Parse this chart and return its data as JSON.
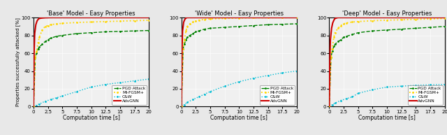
{
  "titles": [
    "'Base' Model - Easy Properties",
    "'Wide' Model - Easy Properties",
    "'Deep' Model - Easy Properties"
  ],
  "xlabel": "Computation time [s]",
  "ylabel": "Properties successfully attacked [%]",
  "xlim": [
    0,
    20
  ],
  "ylim": [
    0,
    100
  ],
  "xticks": [
    0,
    2.5,
    5.0,
    7.5,
    10.0,
    12.5,
    15.0,
    17.5,
    20.0
  ],
  "yticks": [
    0,
    20,
    40,
    60,
    80,
    100
  ],
  "hline_y": 100,
  "legend_labels": [
    "PGD Attack",
    "MI-FGSM+",
    "C&W",
    "AdvGNN"
  ],
  "base_pgd_x": [
    0,
    0.3,
    0.5,
    0.8,
    1.0,
    1.5,
    2.0,
    2.5,
    3.0,
    4.0,
    5.0,
    7.5,
    10.0,
    12.5,
    15.0,
    17.5,
    20.0
  ],
  "base_pgd_y": [
    0,
    55,
    60,
    65,
    67,
    70,
    73,
    75,
    77,
    79,
    80,
    82,
    83,
    84,
    84.5,
    85,
    85.5
  ],
  "base_mifgsm_x": [
    0,
    0.3,
    0.5,
    0.8,
    1.0,
    1.5,
    2.0,
    2.5,
    3.0,
    4.0,
    5.0,
    7.5,
    10.0,
    12.5,
    15.0,
    17.5,
    20.0
  ],
  "base_mifgsm_y": [
    0,
    55,
    62,
    72,
    78,
    86,
    90,
    91,
    92,
    93,
    93.5,
    94.5,
    95,
    95.5,
    96,
    96.5,
    97
  ],
  "base_cw_x": [
    0,
    0.5,
    1.0,
    2.0,
    3.0,
    4.0,
    5.0,
    7.5,
    10.0,
    12.5,
    15.0,
    17.5,
    20.0
  ],
  "base_cw_y": [
    0,
    1.5,
    3,
    6,
    8,
    10,
    12,
    17,
    22,
    25,
    27,
    29,
    31
  ],
  "base_adv_x": [
    0,
    0.1,
    0.2,
    0.4,
    0.6,
    0.8,
    1.0,
    1.5,
    2.0,
    3.0,
    5.0,
    10.0,
    20.0
  ],
  "base_adv_y": [
    0,
    60,
    82,
    92,
    96,
    98,
    99,
    99.5,
    99.8,
    100,
    100,
    100,
    100
  ],
  "wide_pgd_x": [
    0,
    0.3,
    0.5,
    0.8,
    1.0,
    1.5,
    2.0,
    2.5,
    3.0,
    4.0,
    5.0,
    7.5,
    10.0,
    12.5,
    15.0,
    17.5,
    20.0
  ],
  "wide_pgd_y": [
    0,
    65,
    70,
    75,
    78,
    80,
    82,
    84,
    85,
    87,
    88,
    89,
    90,
    91,
    92,
    92.5,
    93
  ],
  "wide_mifgsm_x": [
    0,
    0.3,
    0.5,
    0.8,
    1.0,
    1.5,
    2.0,
    2.5,
    3.0,
    4.0,
    5.0,
    7.5,
    10.0,
    12.5,
    15.0,
    17.5,
    20.0
  ],
  "wide_mifgsm_y": [
    0,
    65,
    75,
    85,
    90,
    93,
    95,
    96,
    97,
    98,
    98.5,
    99,
    99.5,
    99.7,
    99.8,
    99.9,
    100
  ],
  "wide_cw_x": [
    0,
    0.5,
    1.0,
    2.0,
    3.0,
    4.0,
    5.0,
    7.5,
    10.0,
    12.5,
    15.0,
    17.5,
    20.0
  ],
  "wide_cw_y": [
    0,
    2,
    5,
    8,
    11,
    14,
    17,
    23,
    28,
    32,
    35,
    38,
    40
  ],
  "wide_adv_x": [
    0,
    0.1,
    0.2,
    0.4,
    0.6,
    0.8,
    1.0,
    1.5,
    2.0,
    3.0,
    5.0,
    10.0,
    20.0
  ],
  "wide_adv_y": [
    0,
    62,
    85,
    95,
    98,
    99.5,
    100,
    100,
    100,
    100,
    100,
    100,
    100
  ],
  "deep_pgd_x": [
    0,
    0.3,
    0.5,
    0.8,
    1.0,
    1.5,
    2.0,
    2.5,
    3.0,
    4.0,
    5.0,
    7.5,
    10.0,
    12.5,
    15.0,
    17.5,
    20.0
  ],
  "deep_pgd_y": [
    0,
    55,
    62,
    68,
    70,
    73,
    75,
    78,
    79,
    81,
    83,
    85,
    86,
    87,
    88,
    89,
    90
  ],
  "deep_mifgsm_x": [
    0,
    0.3,
    0.5,
    0.8,
    1.0,
    1.5,
    2.0,
    2.5,
    3.0,
    4.0,
    5.0,
    7.5,
    10.0,
    12.5,
    15.0,
    17.5,
    20.0
  ],
  "deep_mifgsm_y": [
    0,
    55,
    65,
    78,
    83,
    88,
    91,
    93,
    94,
    95,
    95.5,
    96.5,
    97,
    97.5,
    98,
    98.5,
    99
  ],
  "deep_cw_x": [
    0,
    0.5,
    1.0,
    2.0,
    3.0,
    4.0,
    5.0,
    7.5,
    10.0,
    12.5,
    15.0,
    17.5,
    20.0
  ],
  "deep_cw_y": [
    0,
    2,
    4,
    7,
    9,
    11,
    15,
    19,
    22,
    23,
    24,
    24.5,
    25
  ],
  "deep_adv_x": [
    0,
    0.1,
    0.2,
    0.4,
    0.6,
    0.8,
    1.0,
    1.5,
    2.0,
    2.5,
    3.0,
    5.0,
    10.0,
    20.0
  ],
  "deep_adv_y": [
    0,
    52,
    75,
    88,
    94,
    97,
    99,
    100,
    100,
    100,
    100,
    100,
    100,
    100
  ],
  "fig_facecolor": "#e8e8e8",
  "ax_facecolor": "#f0f0f0"
}
